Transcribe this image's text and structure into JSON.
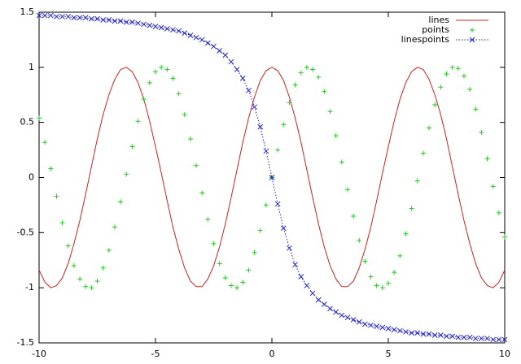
{
  "chart_data": {
    "type": "line",
    "x": [
      -10,
      -9.75,
      -9.5,
      -9.25,
      -9,
      -8.75,
      -8.5,
      -8.25,
      -8,
      -7.75,
      -7.5,
      -7.25,
      -7,
      -6.75,
      -6.5,
      -6.25,
      -6,
      -5.75,
      -5.5,
      -5.25,
      -5,
      -4.75,
      -4.5,
      -4.25,
      -4,
      -3.75,
      -3.5,
      -3.25,
      -3,
      -2.75,
      -2.5,
      -2.25,
      -2,
      -1.75,
      -1.5,
      -1.25,
      -1,
      -0.75,
      -0.5,
      -0.25,
      0,
      0.25,
      0.5,
      0.75,
      1,
      1.25,
      1.5,
      1.75,
      2,
      2.25,
      2.5,
      2.75,
      3,
      3.25,
      3.5,
      3.75,
      4,
      4.25,
      4.5,
      4.75,
      5,
      5.25,
      5.5,
      5.75,
      6,
      6.25,
      6.5,
      6.75,
      7,
      7.25,
      7.5,
      7.75,
      8,
      8.25,
      8.5,
      8.75,
      9,
      9.25,
      9.5,
      9.75,
      10
    ],
    "series": [
      {
        "name": "lines",
        "style": "lines",
        "color": "#cc2222",
        "values": [
          -0.84,
          -0.95,
          -1.0,
          -0.98,
          -0.91,
          -0.78,
          -0.6,
          -0.39,
          -0.15,
          0.1,
          0.35,
          0.57,
          0.75,
          0.89,
          0.98,
          1.0,
          0.96,
          0.86,
          0.71,
          0.51,
          0.28,
          0.04,
          -0.21,
          -0.45,
          -0.65,
          -0.82,
          -0.94,
          -0.99,
          -0.99,
          -0.92,
          -0.8,
          -0.63,
          -0.42,
          -0.18,
          0.07,
          0.32,
          0.54,
          0.73,
          0.88,
          0.97,
          1,
          0.97,
          0.88,
          0.73,
          0.54,
          0.32,
          0.07,
          -0.18,
          -0.42,
          -0.63,
          -0.8,
          -0.92,
          -0.99,
          -0.99,
          -0.94,
          -0.82,
          -0.65,
          -0.45,
          -0.21,
          0.04,
          0.28,
          0.51,
          0.71,
          0.86,
          0.96,
          1.0,
          0.98,
          0.89,
          0.75,
          0.57,
          0.35,
          0.1,
          -0.15,
          -0.39,
          -0.6,
          -0.78,
          -0.91,
          -0.98,
          -1.0,
          -0.95,
          -0.84
        ]
      },
      {
        "name": "points",
        "style": "points",
        "color": "#22cc22",
        "values": [
          0.54,
          0.32,
          0.08,
          -0.17,
          -0.41,
          -0.62,
          -0.8,
          -0.92,
          -0.99,
          -1.0,
          -0.94,
          -0.82,
          -0.66,
          -0.45,
          -0.22,
          0.03,
          0.28,
          0.51,
          0.71,
          0.86,
          0.96,
          1.0,
          0.98,
          0.9,
          0.76,
          0.57,
          0.35,
          0.11,
          -0.14,
          -0.38,
          -0.6,
          -0.78,
          -0.91,
          -0.98,
          -1.0,
          -0.95,
          -0.84,
          -0.68,
          -0.48,
          -0.25,
          0,
          0.25,
          0.48,
          0.68,
          0.84,
          0.95,
          1.0,
          0.98,
          0.91,
          0.78,
          0.6,
          0.38,
          0.14,
          -0.11,
          -0.35,
          -0.57,
          -0.76,
          -0.9,
          -0.98,
          -1.0,
          -0.96,
          -0.86,
          -0.71,
          -0.51,
          -0.28,
          -0.03,
          0.22,
          0.45,
          0.66,
          0.82,
          0.94,
          1.0,
          0.99,
          0.92,
          0.8,
          0.62,
          0.41,
          0.17,
          -0.08,
          -0.32,
          -0.54
        ]
      },
      {
        "name": "linespoints",
        "style": "linespoints",
        "color": "#2222cc",
        "values": [
          1.47,
          1.47,
          1.47,
          1.46,
          1.46,
          1.46,
          1.45,
          1.45,
          1.45,
          1.44,
          1.44,
          1.43,
          1.43,
          1.42,
          1.42,
          1.41,
          1.41,
          1.4,
          1.39,
          1.38,
          1.37,
          1.36,
          1.35,
          1.34,
          1.33,
          1.31,
          1.29,
          1.27,
          1.25,
          1.22,
          1.19,
          1.15,
          1.11,
          1.05,
          0.98,
          0.9,
          0.79,
          0.64,
          0.46,
          0.24,
          0,
          -0.24,
          -0.46,
          -0.64,
          -0.79,
          -0.9,
          -0.98,
          -1.05,
          -1.11,
          -1.15,
          -1.19,
          -1.22,
          -1.25,
          -1.27,
          -1.29,
          -1.31,
          -1.33,
          -1.34,
          -1.35,
          -1.36,
          -1.37,
          -1.38,
          -1.39,
          -1.4,
          -1.41,
          -1.41,
          -1.42,
          -1.42,
          -1.43,
          -1.43,
          -1.44,
          -1.44,
          -1.45,
          -1.45,
          -1.45,
          -1.46,
          -1.46,
          -1.46,
          -1.47,
          -1.47,
          -1.47
        ]
      }
    ],
    "xlim": [
      -10,
      10
    ],
    "xticks": [
      -10,
      -5,
      0,
      5,
      10
    ],
    "ylim": [
      -1.5,
      1.5
    ],
    "yticks": [
      -1.5,
      -1,
      -0.5,
      0,
      0.5,
      1,
      1.5
    ],
    "legend": "top-right"
  }
}
